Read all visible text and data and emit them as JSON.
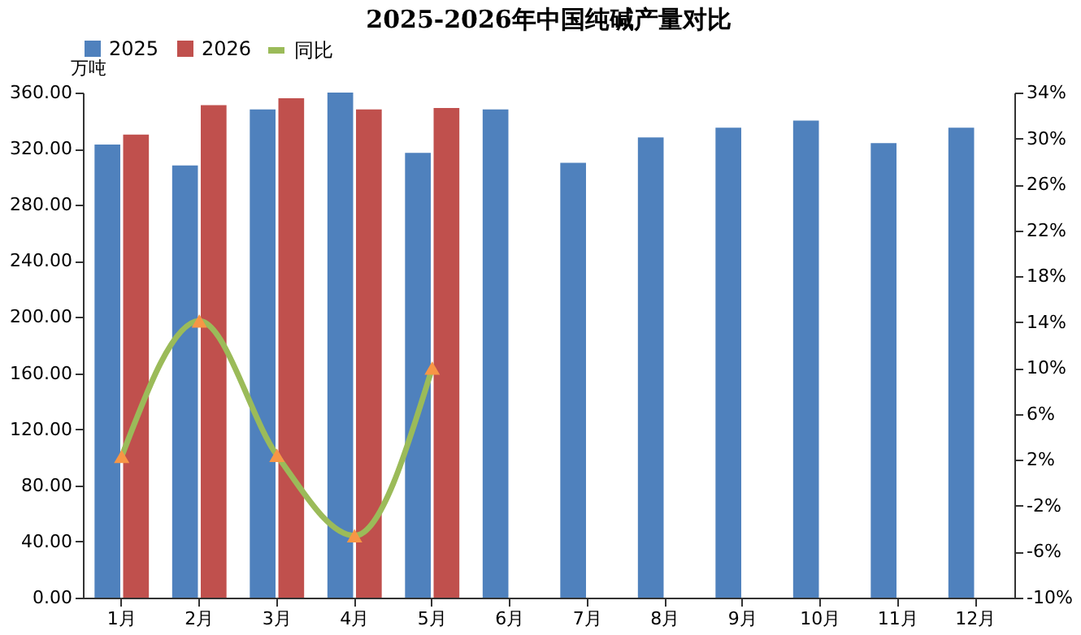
{
  "chart_data": {
    "type": "bar",
    "title": "2025-2026年中国纯碱产量对比",
    "ylabel": "万吨",
    "categories": [
      "1月",
      "2月",
      "3月",
      "4月",
      "5月",
      "6月",
      "7月",
      "8月",
      "9月",
      "10月",
      "11月",
      "12月"
    ],
    "series": [
      {
        "name": "2025",
        "color": "#4f81bd",
        "values": [
          323,
          308,
          348,
          360,
          317,
          348,
          310,
          328,
          335,
          340,
          324,
          335
        ]
      },
      {
        "name": "2026",
        "color": "#c0504d",
        "values": [
          330,
          351,
          356,
          348,
          349,
          null,
          null,
          null,
          null,
          null,
          null,
          null
        ]
      },
      {
        "name": "同比",
        "type": "line",
        "axis": "y2",
        "color": "#9bbb59",
        "marker": "triangle",
        "values": [
          2.3,
          14.1,
          2.4,
          -4.6,
          10.0,
          null,
          null,
          null,
          null,
          null,
          null,
          null
        ]
      }
    ],
    "ylim": [
      0,
      360
    ],
    "yticks": [
      {
        "value": 0,
        "label": "0.00"
      },
      {
        "value": 40,
        "label": "40.00"
      },
      {
        "value": 80,
        "label": "80.00"
      },
      {
        "value": 120,
        "label": "120.00"
      },
      {
        "value": 160,
        "label": "160.00"
      },
      {
        "value": 200,
        "label": "200.00"
      },
      {
        "value": 240,
        "label": "240.00"
      },
      {
        "value": 280,
        "label": "280.00"
      },
      {
        "value": 320,
        "label": "320.00"
      },
      {
        "value": 360,
        "label": "360.00"
      }
    ],
    "y2lim": [
      -10,
      34
    ],
    "y2ticks": [
      {
        "value": -10,
        "label": "-10%"
      },
      {
        "value": -6,
        "label": "-6%"
      },
      {
        "value": -2,
        "label": "-2%"
      },
      {
        "value": 2,
        "label": "2%"
      },
      {
        "value": 6,
        "label": "6%"
      },
      {
        "value": 10,
        "label": "10%"
      },
      {
        "value": 14,
        "label": "14%"
      },
      {
        "value": 18,
        "label": "18%"
      },
      {
        "value": 22,
        "label": "22%"
      },
      {
        "value": 26,
        "label": "26%"
      },
      {
        "value": 30,
        "label": "30%"
      },
      {
        "value": 34,
        "label": "34%"
      }
    ],
    "grid": false,
    "legend": "top"
  }
}
